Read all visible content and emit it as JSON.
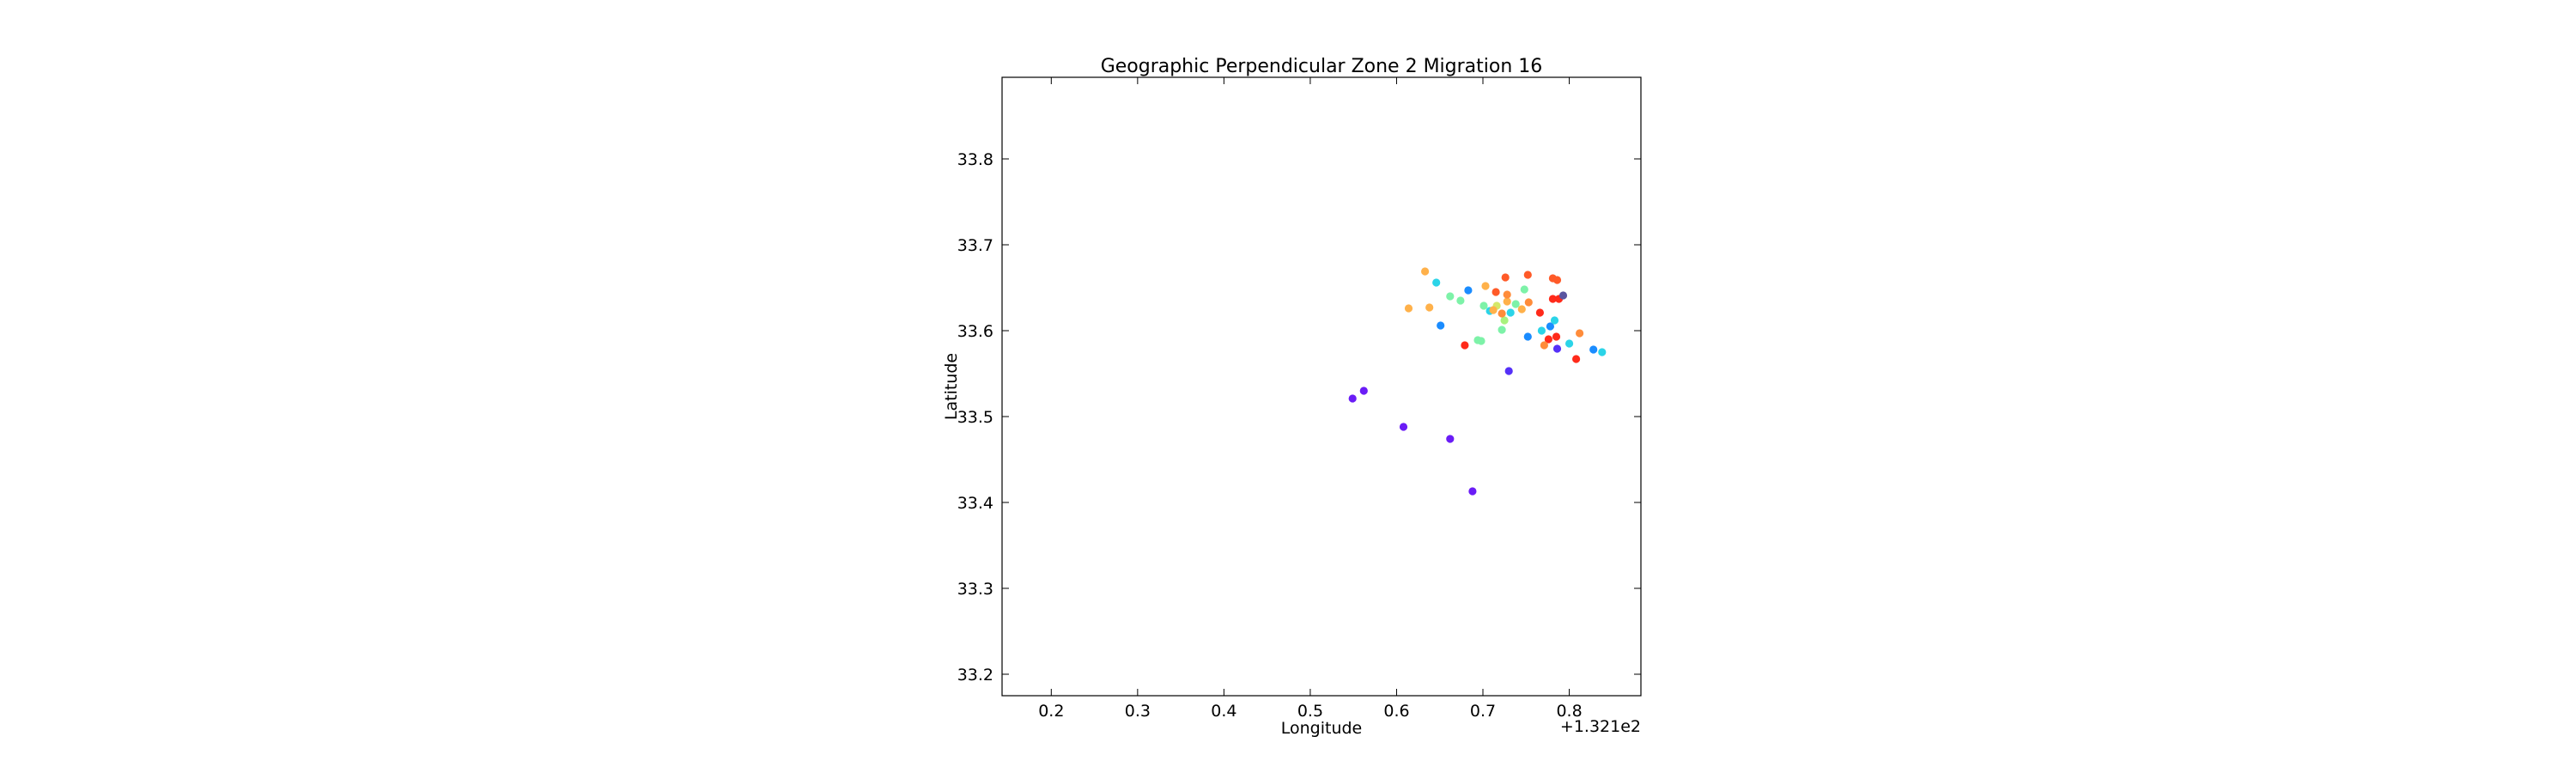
{
  "chart_data": {
    "type": "scatter",
    "title": "Geographic Perpendicular Zone 2 Migration 16",
    "xlabel": "Longitude",
    "ylabel": "Latitude",
    "x_offset_label": "+1.321e2",
    "xlim": [
      0.143,
      0.883
    ],
    "ylim": [
      33.175,
      33.895
    ],
    "xticks": [
      0.2,
      0.3,
      0.4,
      0.5,
      0.6,
      0.7,
      0.8
    ],
    "xtick_labels": [
      "0.2",
      "0.3",
      "0.4",
      "0.5",
      "0.6",
      "0.7",
      "0.8"
    ],
    "yticks": [
      33.2,
      33.3,
      33.4,
      33.5,
      33.6,
      33.7,
      33.8
    ],
    "ytick_labels": [
      "33.2",
      "33.3",
      "33.4",
      "33.5",
      "33.6",
      "33.7",
      "33.8"
    ],
    "grid": false,
    "legend": "none",
    "colormap": "rainbow",
    "points": [
      {
        "x": 0.549,
        "y": 33.521,
        "color": "#6a1cf6"
      },
      {
        "x": 0.562,
        "y": 33.53,
        "color": "#6a1cf6"
      },
      {
        "x": 0.608,
        "y": 33.488,
        "color": "#6a1cf6"
      },
      {
        "x": 0.662,
        "y": 33.474,
        "color": "#6a1cf6"
      },
      {
        "x": 0.688,
        "y": 33.413,
        "color": "#6a1cf6"
      },
      {
        "x": 0.73,
        "y": 33.553,
        "color": "#5530f8"
      },
      {
        "x": 0.786,
        "y": 33.579,
        "color": "#5530f8"
      },
      {
        "x": 0.651,
        "y": 33.606,
        "color": "#1a8cff"
      },
      {
        "x": 0.683,
        "y": 33.647,
        "color": "#1a8cff"
      },
      {
        "x": 0.752,
        "y": 33.593,
        "color": "#1a8cff"
      },
      {
        "x": 0.778,
        "y": 33.605,
        "color": "#1a8cff"
      },
      {
        "x": 0.828,
        "y": 33.578,
        "color": "#1a8cff"
      },
      {
        "x": 0.646,
        "y": 33.656,
        "color": "#2bd4e8"
      },
      {
        "x": 0.708,
        "y": 33.623,
        "color": "#2bd4e8"
      },
      {
        "x": 0.732,
        "y": 33.621,
        "color": "#2bd4e8"
      },
      {
        "x": 0.768,
        "y": 33.6,
        "color": "#2bd4e8"
      },
      {
        "x": 0.783,
        "y": 33.612,
        "color": "#2bd4e8"
      },
      {
        "x": 0.8,
        "y": 33.585,
        "color": "#2bd4e8"
      },
      {
        "x": 0.838,
        "y": 33.575,
        "color": "#2bd4e8"
      },
      {
        "x": 0.662,
        "y": 33.64,
        "color": "#7df2a8"
      },
      {
        "x": 0.674,
        "y": 33.635,
        "color": "#7df2a8"
      },
      {
        "x": 0.694,
        "y": 33.589,
        "color": "#7df2a8"
      },
      {
        "x": 0.698,
        "y": 33.588,
        "color": "#7df2a8"
      },
      {
        "x": 0.701,
        "y": 33.629,
        "color": "#7df2a8"
      },
      {
        "x": 0.722,
        "y": 33.601,
        "color": "#7df2a8"
      },
      {
        "x": 0.738,
        "y": 33.631,
        "color": "#7df2a8"
      },
      {
        "x": 0.748,
        "y": 33.648,
        "color": "#7df2a8"
      },
      {
        "x": 0.725,
        "y": 33.612,
        "color": "#a8f27d"
      },
      {
        "x": 0.716,
        "y": 33.629,
        "color": "#d4e86a"
      },
      {
        "x": 0.614,
        "y": 33.626,
        "color": "#ffb14a"
      },
      {
        "x": 0.633,
        "y": 33.669,
        "color": "#ffb14a"
      },
      {
        "x": 0.638,
        "y": 33.627,
        "color": "#ffb14a"
      },
      {
        "x": 0.703,
        "y": 33.652,
        "color": "#ffb14a"
      },
      {
        "x": 0.712,
        "y": 33.624,
        "color": "#ffb14a"
      },
      {
        "x": 0.728,
        "y": 33.634,
        "color": "#ffb14a"
      },
      {
        "x": 0.745,
        "y": 33.625,
        "color": "#ffb14a"
      },
      {
        "x": 0.753,
        "y": 33.633,
        "color": "#ff8c3a"
      },
      {
        "x": 0.728,
        "y": 33.642,
        "color": "#ff8c3a"
      },
      {
        "x": 0.722,
        "y": 33.62,
        "color": "#ff8c3a"
      },
      {
        "x": 0.812,
        "y": 33.597,
        "color": "#ff8c3a"
      },
      {
        "x": 0.715,
        "y": 33.645,
        "color": "#ff5a28"
      },
      {
        "x": 0.726,
        "y": 33.662,
        "color": "#ff5a28"
      },
      {
        "x": 0.752,
        "y": 33.665,
        "color": "#ff5a28"
      },
      {
        "x": 0.781,
        "y": 33.661,
        "color": "#ff5a28"
      },
      {
        "x": 0.786,
        "y": 33.659,
        "color": "#ff5a28"
      },
      {
        "x": 0.766,
        "y": 33.621,
        "color": "#ff2a1a"
      },
      {
        "x": 0.679,
        "y": 33.583,
        "color": "#ff2a1a"
      },
      {
        "x": 0.776,
        "y": 33.59,
        "color": "#ff2a1a"
      },
      {
        "x": 0.785,
        "y": 33.593,
        "color": "#ff2a1a"
      },
      {
        "x": 0.808,
        "y": 33.567,
        "color": "#ff2a1a"
      },
      {
        "x": 0.781,
        "y": 33.637,
        "color": "#ff2a1a"
      },
      {
        "x": 0.788,
        "y": 33.637,
        "color": "#ff2a1a"
      },
      {
        "x": 0.793,
        "y": 33.641,
        "color": "#5a55a0"
      },
      {
        "x": 0.771,
        "y": 33.583,
        "color": "#ff8c3a"
      }
    ]
  }
}
